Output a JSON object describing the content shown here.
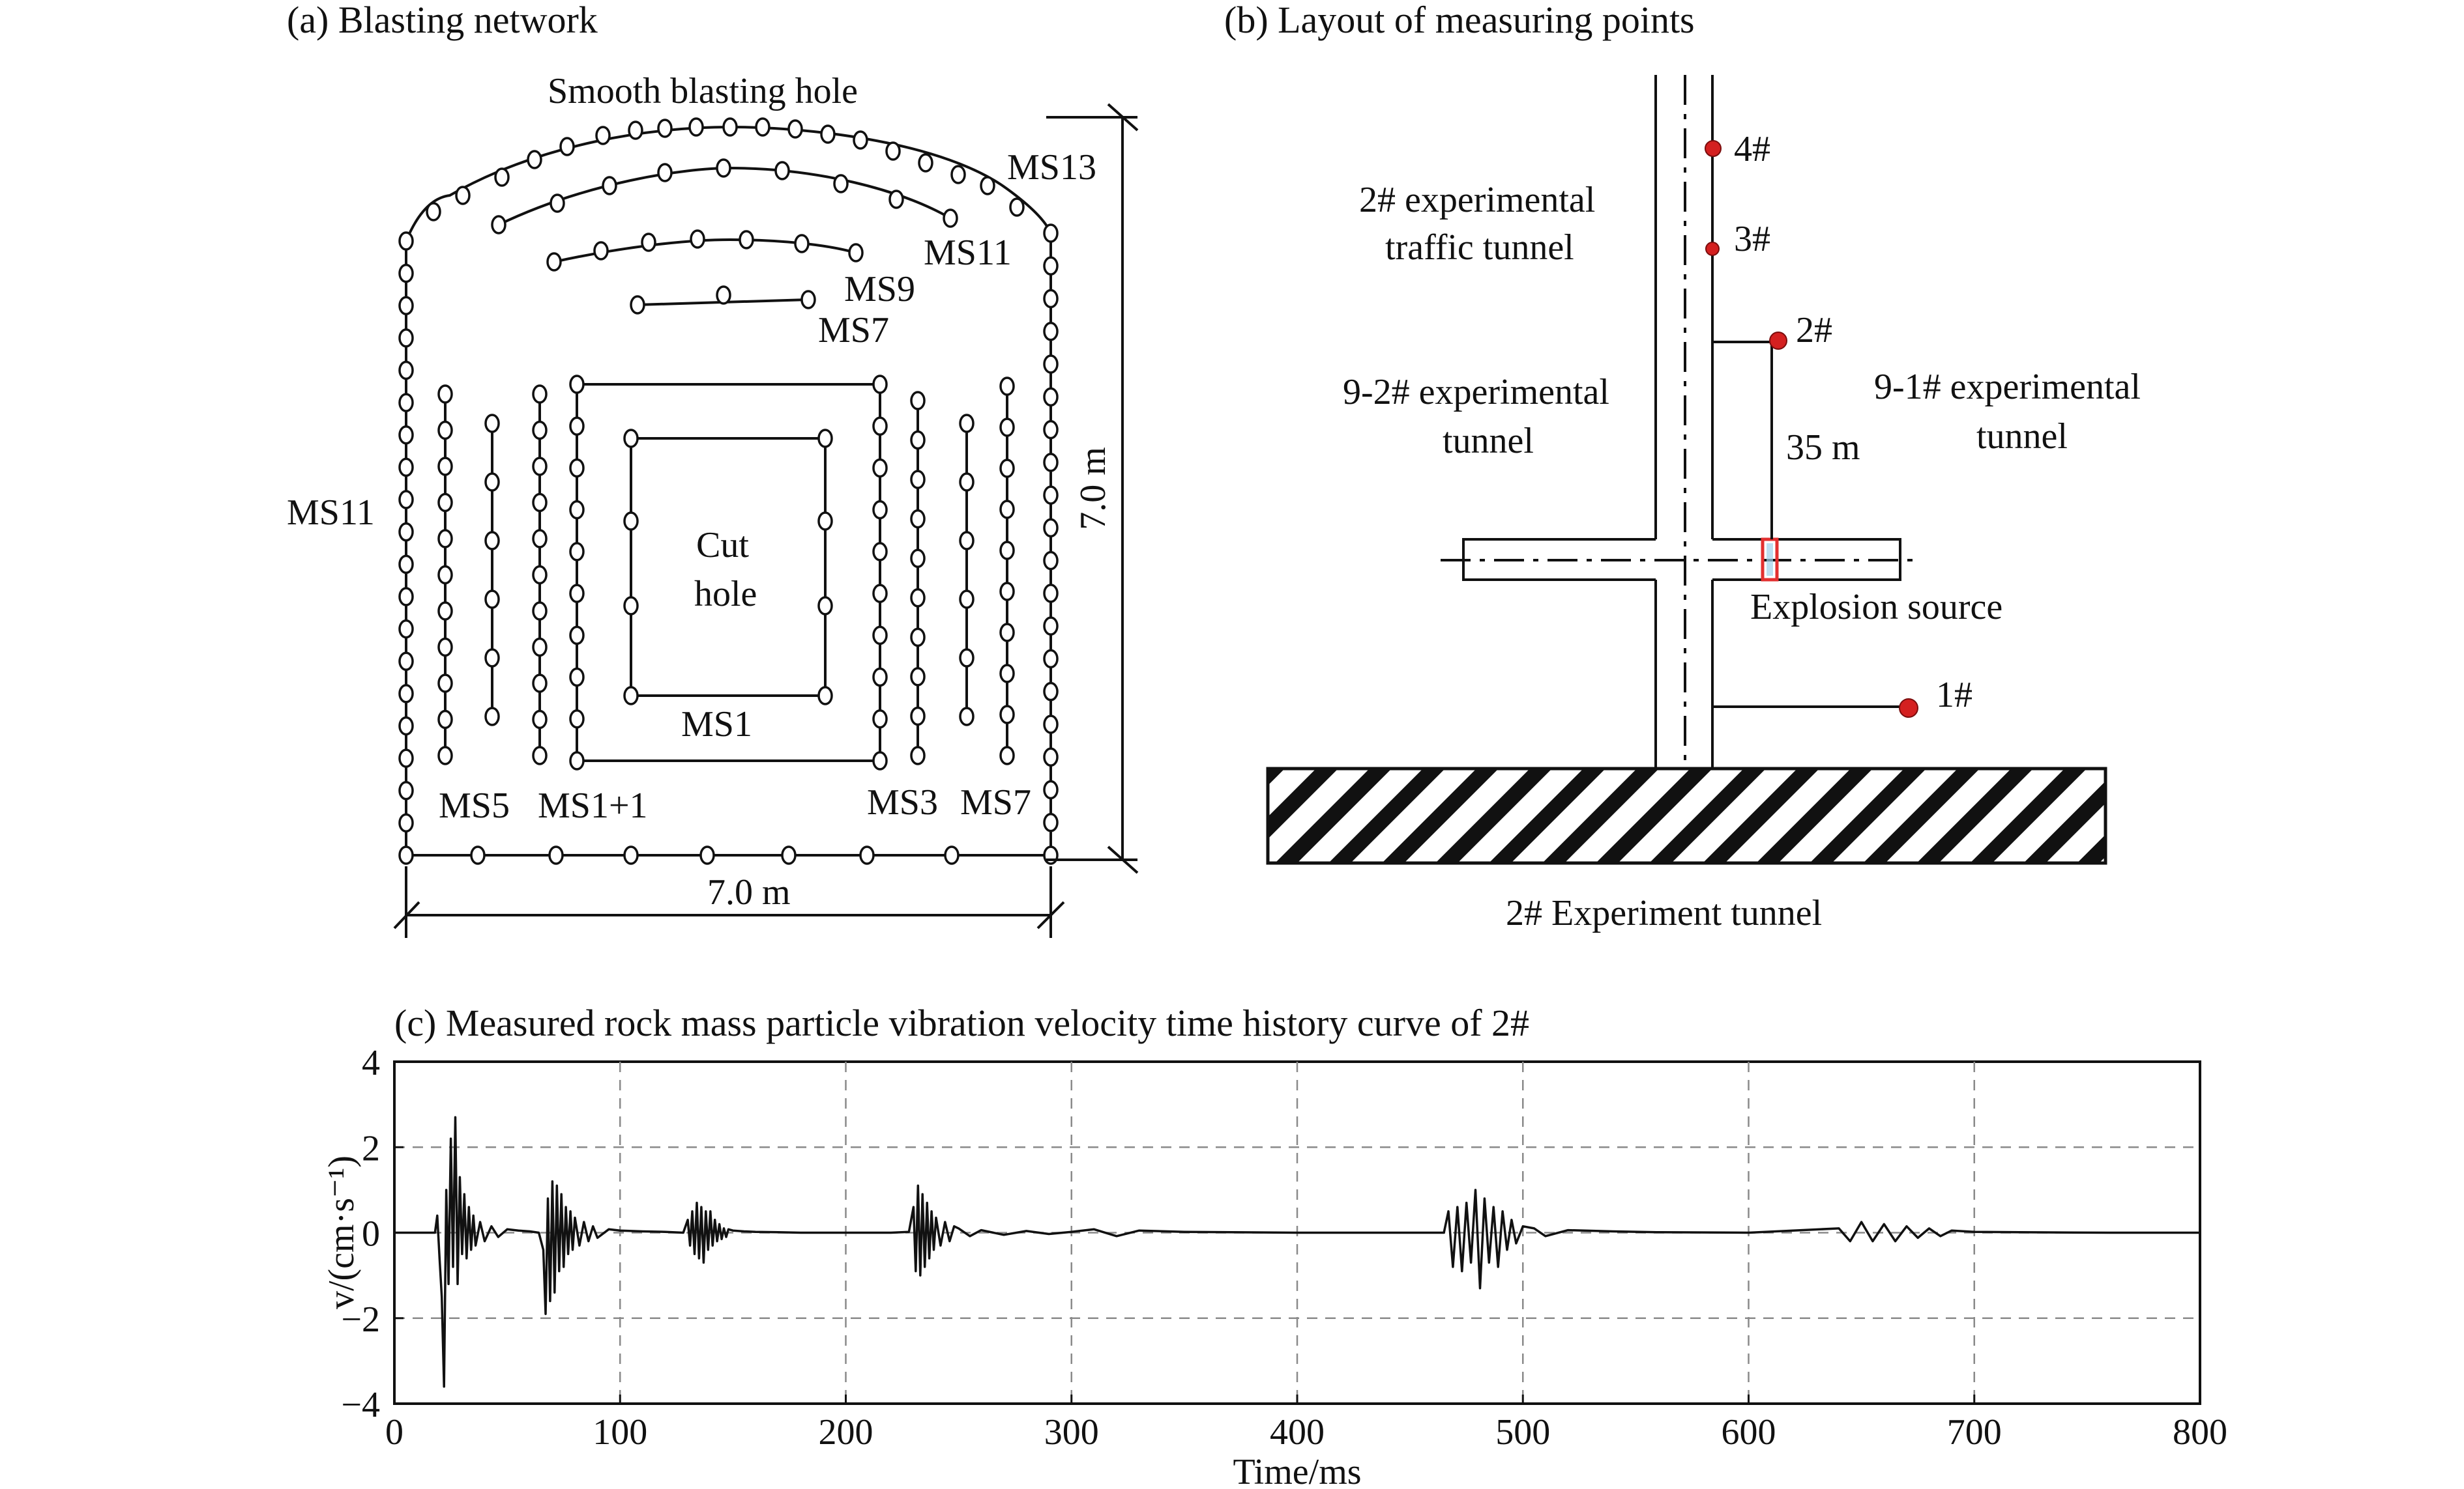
{
  "panel_a": {
    "title": "(a) Blasting network",
    "smooth_label": "Smooth blasting hole",
    "cut_label_line1": "Cut",
    "cut_label_line2": "hole",
    "delay_labels": {
      "ms13": "MS13",
      "ms11_top": "MS11",
      "ms9": "MS9",
      "ms7_top": "MS7",
      "ms11_left": "MS11",
      "ms1": "MS1",
      "ms5": "MS5",
      "ms1p1": "MS1+1",
      "ms3": "MS3",
      "ms7_bottom": "MS7"
    },
    "height_dim": "7.0 m",
    "width_dim": "7.0 m"
  },
  "panel_b": {
    "title": "(b) Layout of measuring points",
    "traffic_tunnel_line1": "2# experimental",
    "traffic_tunnel_line2": "traffic tunnel",
    "left_tunnel_line1": "9-2# experimental",
    "left_tunnel_line2": "tunnel",
    "right_tunnel_line1": "9-1# experimental",
    "right_tunnel_line2": "tunnel",
    "distance": "35 m",
    "source_label": "Explosion source",
    "bottom_label": "2# Experiment tunnel",
    "points": [
      "4#",
      "3#",
      "2#",
      "1#"
    ],
    "point_color": "#d42020",
    "source_color": "#e23030"
  },
  "panel_c": {
    "title": "(c) Measured rock mass particle vibration velocity time history curve of 2#",
    "chart_data": {
      "type": "line",
      "title": "(c) Measured rock mass particle vibration velocity time history curve of 2#",
      "xlabel": "Time/ms",
      "ylabel": "v/(cm·s⁻¹)",
      "xlim": [
        0,
        800
      ],
      "ylim": [
        -4,
        4
      ],
      "xticks": [
        "0",
        "100",
        "200",
        "300",
        "400",
        "500",
        "600",
        "700",
        "800"
      ],
      "yticks": [
        "4",
        "2",
        "0",
        "−2",
        "−4"
      ],
      "grid": true,
      "series": [
        {
          "color": "#111111",
          "x": [
            0,
            18,
            19,
            20,
            21,
            22,
            23,
            24,
            25,
            26,
            27,
            28,
            29,
            30,
            31,
            32,
            33,
            34,
            35,
            36,
            38,
            40,
            43,
            46,
            50,
            55,
            60,
            64,
            66,
            67,
            68,
            69,
            70,
            71,
            72,
            73,
            74,
            75,
            76,
            77,
            78,
            79,
            80,
            82,
            84,
            86,
            88,
            90,
            95,
            100,
            110,
            120,
            128,
            130,
            131,
            132,
            133,
            134,
            135,
            136,
            137,
            138,
            139,
            140,
            141,
            142,
            143,
            144,
            145,
            146,
            147,
            148,
            150,
            155,
            160,
            170,
            180,
            200,
            220,
            228,
            230,
            231,
            232,
            233,
            234,
            235,
            236,
            237,
            238,
            239,
            240,
            242,
            244,
            246,
            248,
            250,
            255,
            260,
            270,
            280,
            290,
            300,
            310,
            320,
            330,
            350,
            400,
            450,
            465,
            467,
            469,
            471,
            473,
            475,
            477,
            479,
            481,
            483,
            485,
            487,
            489,
            491,
            493,
            495,
            497,
            500,
            505,
            510,
            520,
            540,
            560,
            600,
            640,
            645,
            650,
            655,
            660,
            665,
            670,
            675,
            680,
            685,
            690,
            700,
            720,
            760,
            800
          ],
          "values": [
            0,
            0,
            0.4,
            -0.6,
            -1.5,
            -3.6,
            1.0,
            -1.2,
            2.2,
            -0.8,
            2.7,
            -1.2,
            1.3,
            -0.5,
            0.9,
            -0.6,
            0.6,
            -0.4,
            0.4,
            -0.3,
            0.25,
            -0.2,
            0.15,
            -0.1,
            0.08,
            0.05,
            0.03,
            0,
            -0.4,
            -1.9,
            0.8,
            -1.6,
            1.2,
            -1.4,
            1.1,
            -0.9,
            0.9,
            -0.8,
            0.6,
            -0.5,
            0.5,
            -0.4,
            0.35,
            -0.3,
            0.25,
            -0.2,
            0.15,
            -0.12,
            0.08,
            0.05,
            0.03,
            0.02,
            0,
            0.3,
            -0.3,
            0.5,
            -0.5,
            0.7,
            -0.6,
            0.6,
            -0.7,
            0.5,
            -0.4,
            0.5,
            -0.3,
            0.3,
            -0.2,
            0.2,
            -0.15,
            0.1,
            -0.1,
            0.08,
            0.05,
            0.03,
            0.02,
            0.01,
            0,
            0,
            0,
            0.02,
            0.6,
            -0.9,
            1.1,
            -1.0,
            0.9,
            -0.8,
            0.7,
            -0.6,
            0.5,
            -0.4,
            0.35,
            -0.3,
            0.25,
            -0.2,
            0.15,
            0.1,
            -0.08,
            0.06,
            -0.05,
            0.04,
            -0.03,
            0.02,
            0.08,
            -0.08,
            0.05,
            0.02,
            0,
            0,
            0,
            0.5,
            -0.8,
            0.6,
            -0.9,
            0.7,
            -0.7,
            1.0,
            -1.3,
            0.8,
            -0.7,
            0.6,
            -0.8,
            0.5,
            -0.4,
            0.3,
            -0.25,
            0.15,
            0.1,
            -0.08,
            0.06,
            0.03,
            0.01,
            0,
            0.1,
            -0.2,
            0.25,
            -0.2,
            0.2,
            -0.2,
            0.15,
            -0.12,
            0.1,
            -0.08,
            0.05,
            0.02,
            0.01,
            0,
            0
          ]
        }
      ]
    }
  }
}
